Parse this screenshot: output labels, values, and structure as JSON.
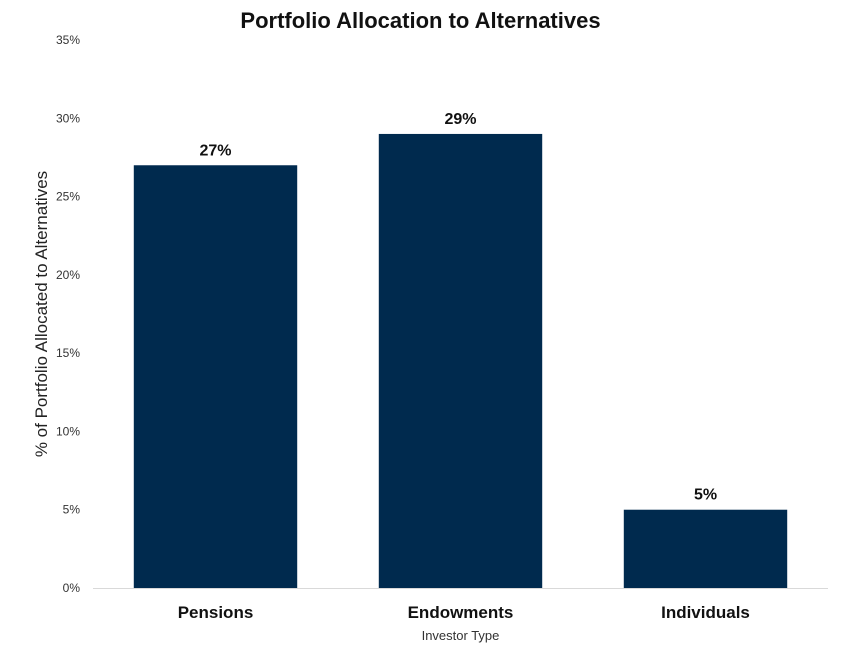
{
  "chart_data": {
    "type": "bar",
    "title": "Portfolio Allocation to Alternatives",
    "xlabel": "Investor Type",
    "ylabel": "% of Portfolio Allocated to Alternatives",
    "categories": [
      "Pensions",
      "Endowments",
      "Individuals"
    ],
    "values": [
      27,
      29,
      5
    ],
    "data_labels": [
      "27%",
      "29%",
      "5%"
    ],
    "ylim": [
      0,
      35
    ],
    "yticks": [
      0,
      5,
      10,
      15,
      20,
      25,
      30,
      35
    ],
    "ytick_labels": [
      "0%",
      "5%",
      "10%",
      "15%",
      "20%",
      "25%",
      "30%",
      "35%"
    ],
    "bar_color": "#002a4e",
    "grid": false,
    "legend": "none"
  }
}
